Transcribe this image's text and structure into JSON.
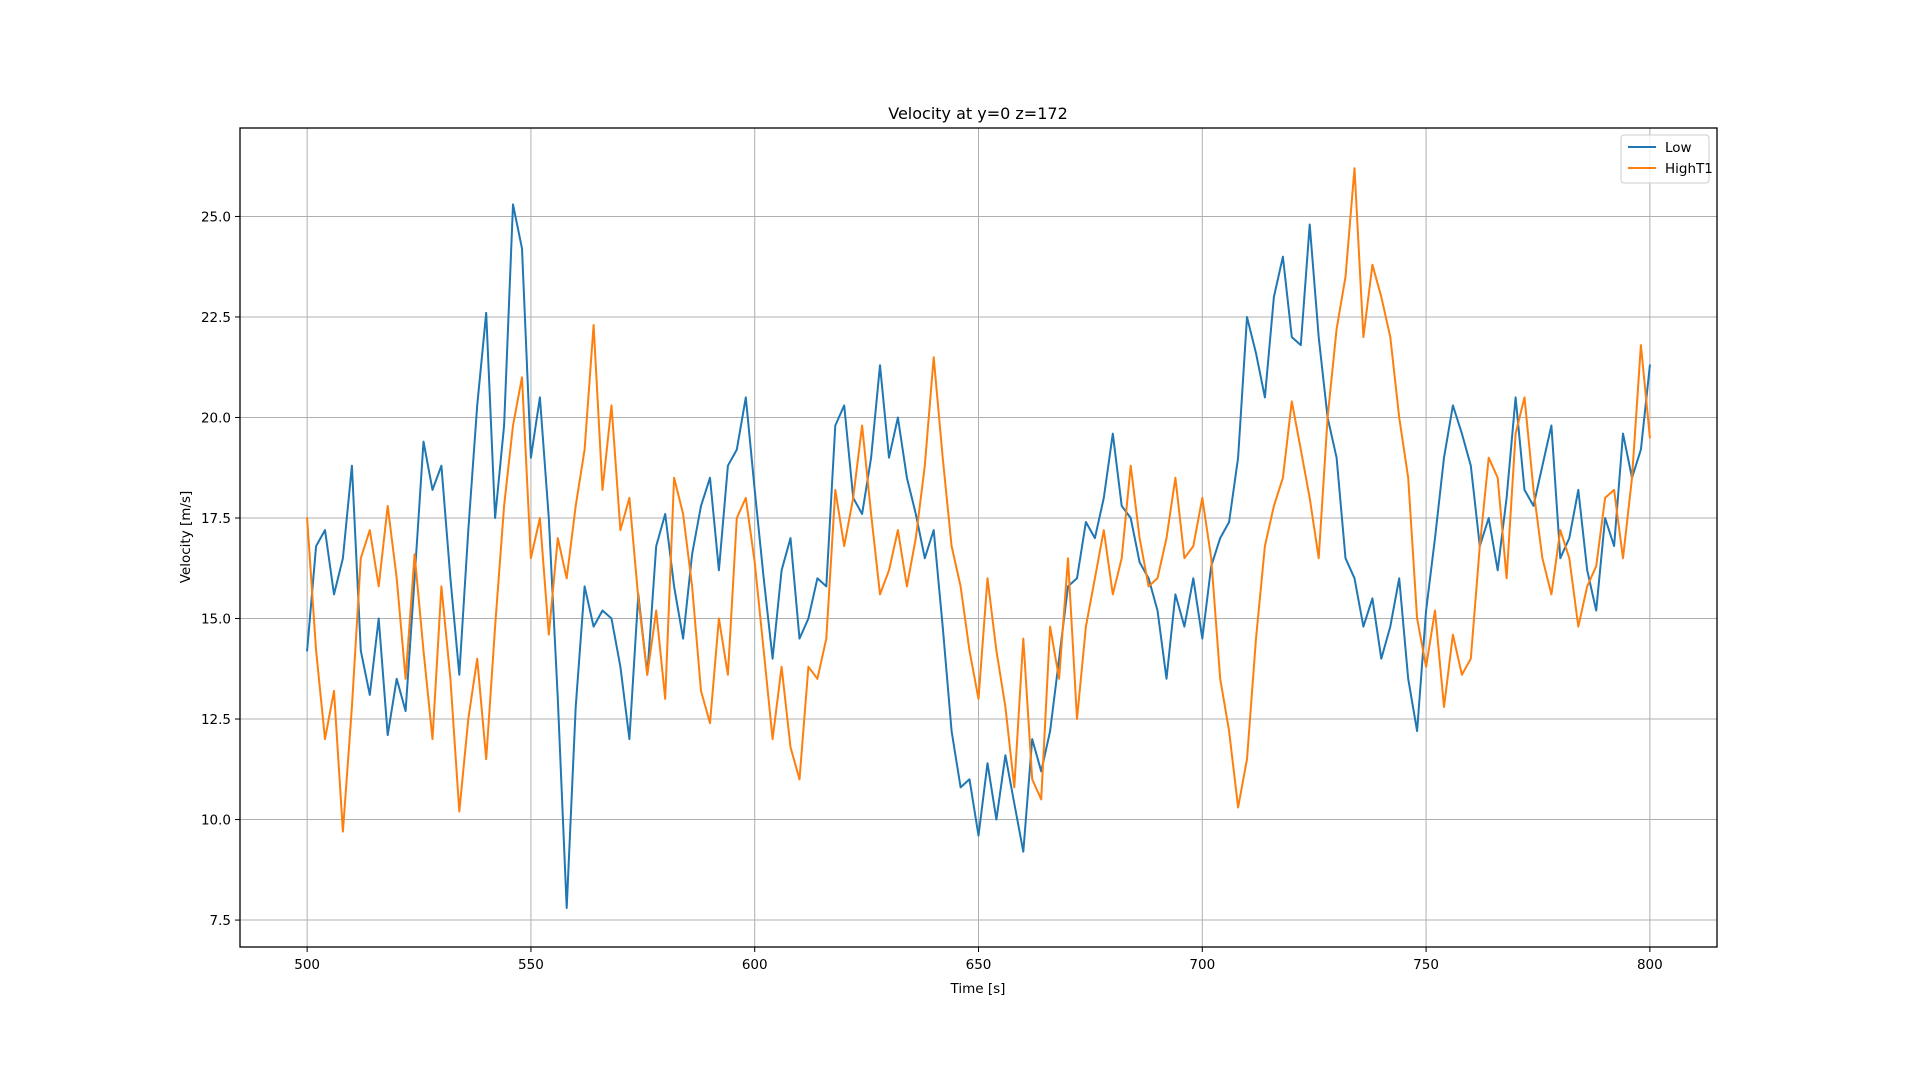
{
  "chart_data": {
    "type": "line",
    "title": "Velocity at y=0 z=172",
    "xlabel": "Time [s]",
    "ylabel": "Velocity [m/s]",
    "xlim": [
      485,
      815
    ],
    "ylim": [
      6.83,
      27.2
    ],
    "xticks": [
      500,
      550,
      600,
      650,
      700,
      750,
      800
    ],
    "xtick_labels": [
      "500",
      "550",
      "600",
      "650",
      "700",
      "750",
      "800"
    ],
    "yticks": [
      7.5,
      10.0,
      12.5,
      15.0,
      17.5,
      20.0,
      22.5,
      25.0
    ],
    "ytick_labels": [
      "7.5",
      "10.0",
      "12.5",
      "15.0",
      "17.5",
      "20.0",
      "22.5",
      "25.0"
    ],
    "grid": true,
    "legend": {
      "placement": "top-right",
      "entries": [
        "Low",
        "HighT1"
      ]
    },
    "x_start": 500,
    "x_step": 2,
    "series": [
      {
        "name": "Low",
        "color": "#1f77b4",
        "values": [
          14.2,
          16.8,
          17.2,
          15.6,
          16.5,
          18.8,
          14.2,
          13.1,
          15.0,
          12.1,
          13.5,
          12.7,
          16.0,
          19.4,
          18.2,
          18.8,
          16.0,
          13.6,
          17.2,
          20.3,
          22.6,
          17.5,
          19.8,
          25.3,
          24.2,
          19.0,
          20.5,
          17.5,
          13.0,
          7.8,
          12.8,
          15.8,
          14.8,
          15.2,
          15.0,
          13.8,
          12.0,
          15.6,
          13.6,
          16.8,
          17.6,
          15.8,
          14.5,
          16.6,
          17.8,
          18.5,
          16.2,
          18.8,
          19.2,
          20.5,
          18.2,
          16.0,
          14.0,
          16.2,
          17.0,
          14.5,
          15.0,
          16.0,
          15.8,
          19.8,
          20.3,
          18.0,
          17.6,
          19.0,
          21.3,
          19.0,
          20.0,
          18.5,
          17.6,
          16.5,
          17.2,
          14.8,
          12.2,
          10.8,
          11.0,
          9.6,
          11.4,
          10.0,
          11.6,
          10.4,
          9.2,
          12.0,
          11.2,
          12.2,
          14.0,
          15.8,
          16.0,
          17.4,
          17.0,
          18.0,
          19.6,
          17.8,
          17.5,
          16.4,
          16.0,
          15.2,
          13.5,
          15.6,
          14.8,
          16.0,
          14.5,
          16.3,
          17.0,
          17.4,
          19.0,
          22.5,
          21.6,
          20.5,
          23.0,
          24.0,
          22.0,
          21.8,
          24.8,
          22.0,
          20.0,
          19.0,
          16.5,
          16.0,
          14.8,
          15.5,
          14.0,
          14.8,
          16.0,
          13.5,
          12.2,
          15.2,
          17.0,
          19.0,
          20.3,
          19.6,
          18.8,
          16.8,
          17.5,
          16.2,
          18.0,
          20.5,
          18.2,
          17.8,
          18.8,
          19.8,
          16.5,
          17.0,
          18.2,
          16.2,
          15.2,
          17.5,
          16.8,
          19.6,
          18.5,
          19.2,
          21.3
        ]
      },
      {
        "name": "HighT1",
        "color": "#ff7f0e",
        "values": [
          17.5,
          14.2,
          12.0,
          13.2,
          9.7,
          12.8,
          16.5,
          17.2,
          15.8,
          17.8,
          16.0,
          13.5,
          16.6,
          14.2,
          12.0,
          15.8,
          13.5,
          10.2,
          12.5,
          14.0,
          11.5,
          14.8,
          17.8,
          19.8,
          21.0,
          16.5,
          17.5,
          14.6,
          17.0,
          16.0,
          17.8,
          19.2,
          22.3,
          18.2,
          20.3,
          17.2,
          18.0,
          15.5,
          13.6,
          15.2,
          13.0,
          18.5,
          17.6,
          15.8,
          13.2,
          12.4,
          15.0,
          13.6,
          17.5,
          18.0,
          16.4,
          14.2,
          12.0,
          13.8,
          11.8,
          11.0,
          13.8,
          13.5,
          14.5,
          18.2,
          16.8,
          18.0,
          19.8,
          17.6,
          15.6,
          16.2,
          17.2,
          15.8,
          17.0,
          18.8,
          21.5,
          19.0,
          16.8,
          15.8,
          14.2,
          13.0,
          16.0,
          14.2,
          12.8,
          10.8,
          14.5,
          11.0,
          10.5,
          14.8,
          13.5,
          16.5,
          12.5,
          14.8,
          16.0,
          17.2,
          15.6,
          16.5,
          18.8,
          17.0,
          15.8,
          16.0,
          17.0,
          18.5,
          16.5,
          16.8,
          18.0,
          16.5,
          13.5,
          12.2,
          10.3,
          11.5,
          14.5,
          16.8,
          17.8,
          18.5,
          20.4,
          19.2,
          18.0,
          16.5,
          20.0,
          22.2,
          23.5,
          26.2,
          22.0,
          23.8,
          23.0,
          22.0,
          20.0,
          18.5,
          15.0,
          13.8,
          15.2,
          12.8,
          14.6,
          13.6,
          14.0,
          16.8,
          19.0,
          18.5,
          16.0,
          19.6,
          20.5,
          18.2,
          16.5,
          15.6,
          17.2,
          16.5,
          14.8,
          15.8,
          16.3,
          18.0,
          18.2,
          16.5,
          18.5,
          21.8,
          19.5
        ]
      }
    ]
  }
}
